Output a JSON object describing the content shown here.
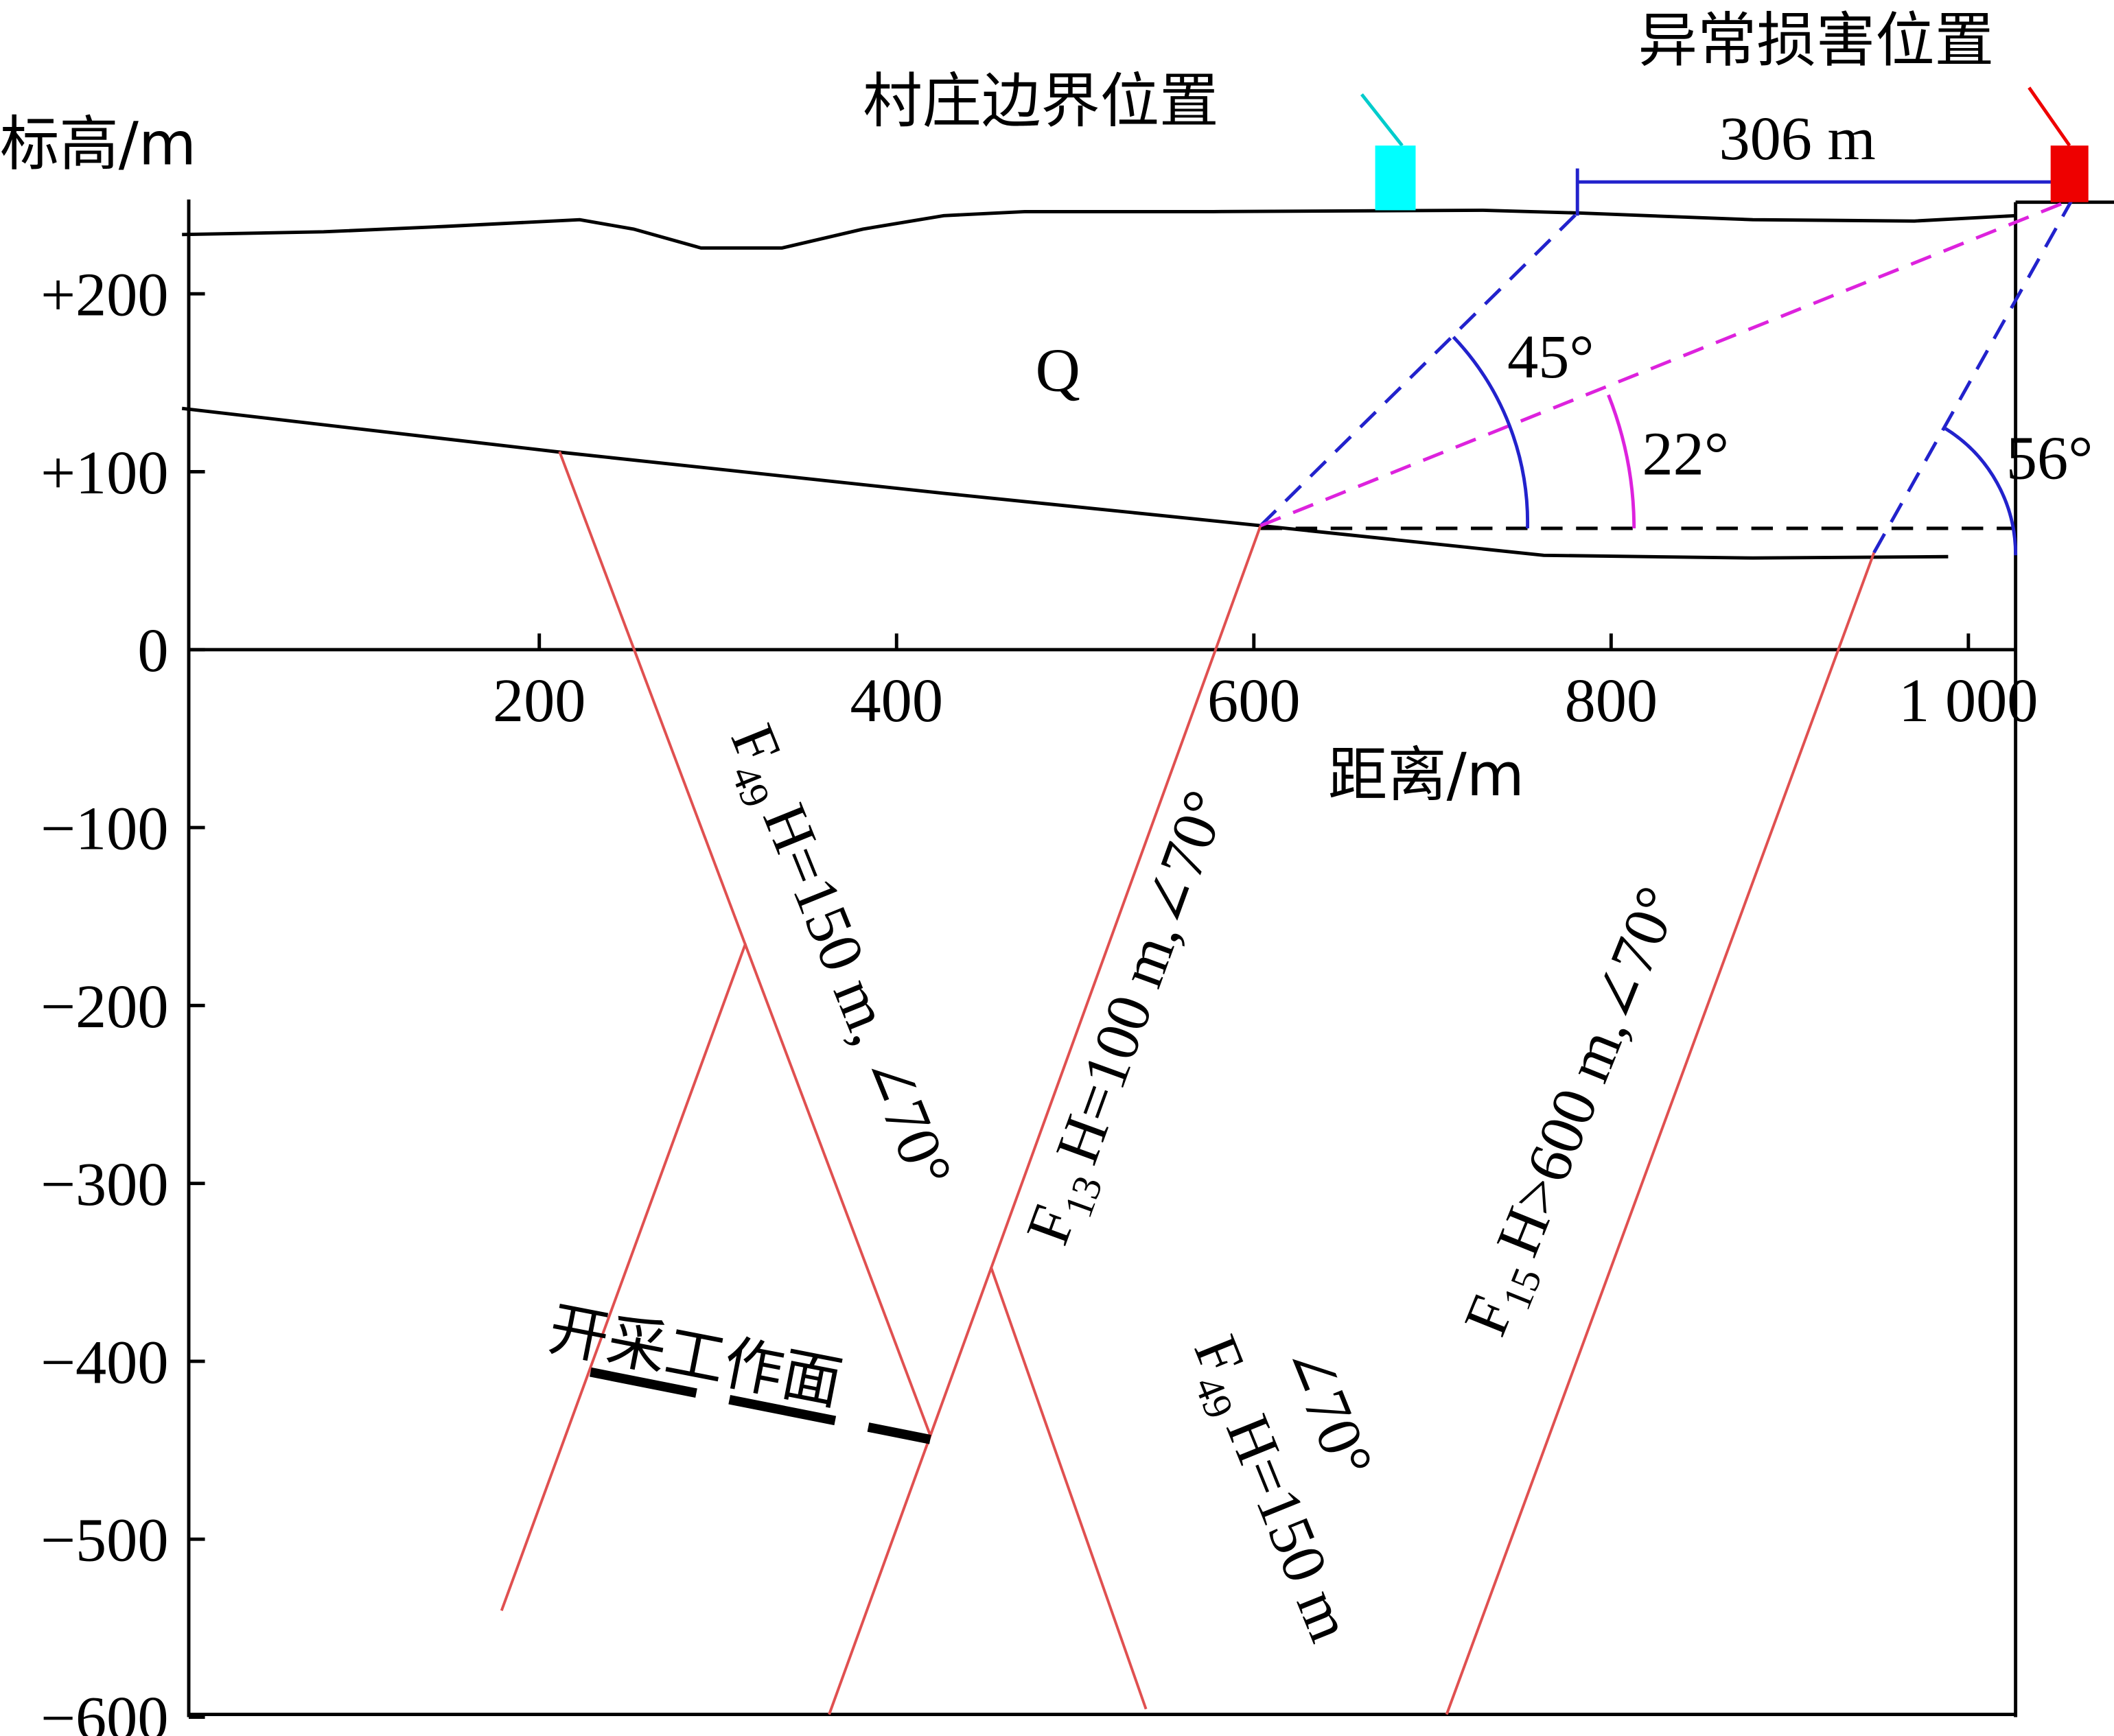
{
  "axes": {
    "y_title": "标高/m",
    "x_title": "距离/m",
    "y_ticks": [
      "+200",
      "+100",
      "0",
      "−100",
      "−200",
      "−300",
      "−400",
      "−500",
      "−600"
    ],
    "x_ticks": [
      "200",
      "400",
      "600",
      "800",
      "1 000"
    ]
  },
  "labels": {
    "village": "村庄边界位置",
    "damage": "异常损害位置",
    "distance": "306 m",
    "layer": "Q",
    "angle_45": "45°",
    "angle_22": "22°",
    "angle_56": "56°",
    "work_face": "开采工作面"
  },
  "faults": [
    {
      "name": "F",
      "sub": "49",
      "desc": "H=150 m, ∠70°"
    },
    {
      "name": "F",
      "sub": "13",
      "desc": "H=100 m,∠70°"
    },
    {
      "name": "F",
      "sub": "49",
      "desc": "H=150 m",
      "extra": "∠70°"
    },
    {
      "name": "F",
      "sub": "15",
      "desc": "H>600 m,∠70°"
    }
  ]
}
